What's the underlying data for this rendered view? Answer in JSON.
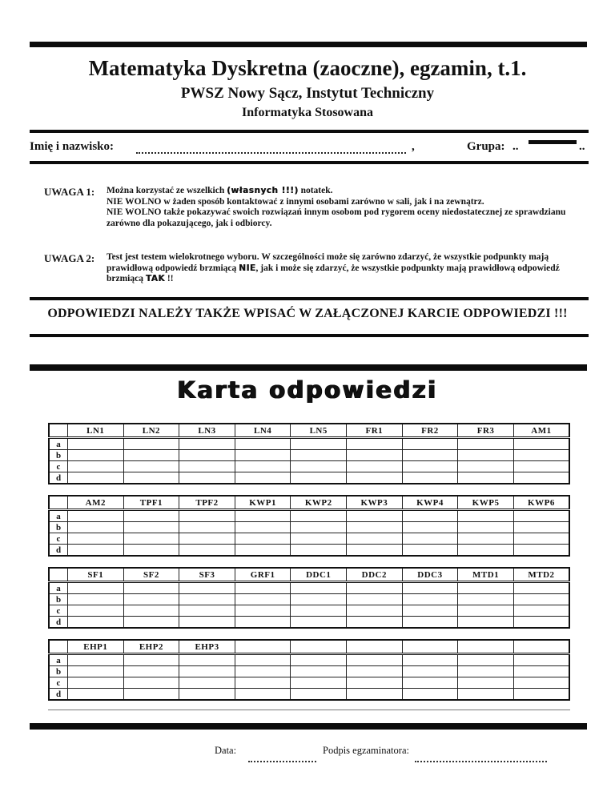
{
  "header": {
    "title": "Matematyka Dyskretna (zaoczne), egzamin, t.1.",
    "institution": "PWSZ Nowy Sącz, Instytut Techniczny",
    "program": "Informatyka Stosowana"
  },
  "identity": {
    "name_label": "Imię i nazwisko:",
    "name_suffix": ",",
    "group_label": "Grupa:",
    "group_prefix": "..",
    "group_suffix": ".."
  },
  "notices": [
    {
      "label": "UWAGA 1:",
      "lines": [
        [
          {
            "t": "Można korzystać ze wszelkich "
          },
          {
            "t": "(własnych !!!)",
            "em": true
          },
          {
            "t": " notatek."
          }
        ],
        [
          {
            "t": "NIE WOLNO w żaden sposób kontaktować z innymi osobami zarówno w sali, jak i na zewnątrz."
          }
        ],
        [
          {
            "t": "NIE WOLNO także pokazywać swoich rozwiązań innym osobom pod rygorem oceny niedostatecznej ze sprawdzianu"
          }
        ],
        [
          {
            "t": "zarówno dla pokazującego, jak i odbiorcy."
          }
        ]
      ]
    },
    {
      "label": "UWAGA 2:",
      "lines": [
        [
          {
            "t": "Test jest testem wielokrotnego wyboru. W szczególności może się zarówno zdarzyć, że wszystkie podpunkty mają"
          }
        ],
        [
          {
            "t": "prawidłową odpowiedź brzmiącą "
          },
          {
            "t": "NIE",
            "em": true
          },
          {
            "t": ", jak i może się zdarzyć, że wszystkie podpunkty mają prawidłową odpowiedź"
          }
        ],
        [
          {
            "t": "brzmiącą "
          },
          {
            "t": "TAK",
            "em": true
          },
          {
            "t": " !!"
          }
        ]
      ]
    }
  ],
  "banner": "ODPOWIEDZI NALEŻY TAKŻE WPISAĆ W ZAŁĄCZONEJ KARCIE ODPOWIEDZI !!!",
  "answer_card": {
    "title": "Karta odpowiedzi",
    "row_labels": [
      "a",
      "b",
      "c",
      "d"
    ],
    "tables": [
      {
        "columns": [
          "LN1",
          "LN2",
          "LN3",
          "LN4",
          "LN5",
          "FR1",
          "FR2",
          "FR3",
          "AM1"
        ]
      },
      {
        "columns": [
          "AM2",
          "TPF1",
          "TPF2",
          "KWP1",
          "KWP2",
          "KWP3",
          "KWP4",
          "KWP5",
          "KWP6"
        ]
      },
      {
        "columns": [
          "SF1",
          "SF2",
          "SF3",
          "GRF1",
          "DDC1",
          "DDC2",
          "DDC3",
          "MTD1",
          "MTD2"
        ]
      },
      {
        "columns": [
          "EHP1",
          "EHP2",
          "EHP3",
          "",
          "",
          "",
          "",
          "",
          ""
        ]
      }
    ]
  },
  "footer": {
    "date_label": "Data:",
    "signature_label": "Podpis egzaminatora:"
  },
  "colors": {
    "ink": "#0c0c0c",
    "paper": "#ffffff"
  }
}
